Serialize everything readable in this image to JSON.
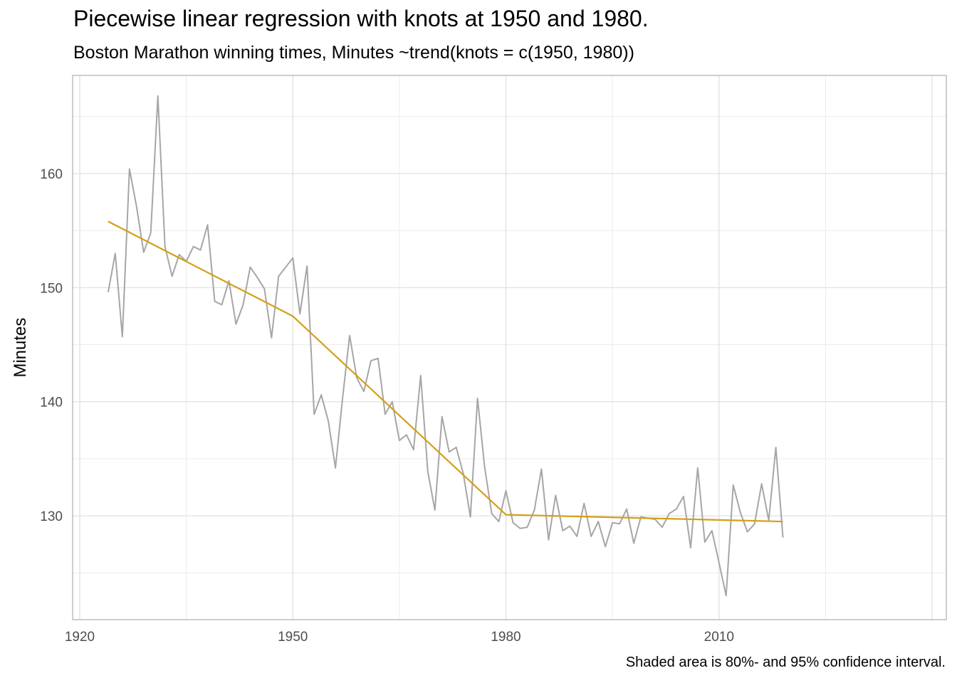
{
  "chart_data": {
    "type": "line",
    "title": "Piecewise linear regression with knots at 1950 and 1980.",
    "subtitle": "Boston Marathon winning times, Minutes ~trend(knots = c(1950, 1980))",
    "caption": "Shaded area is 80%- and 95% confidence interval.",
    "xlabel": "",
    "ylabel": "Minutes",
    "xlim": [
      1919,
      2042
    ],
    "ylim": [
      120.9,
      168.6
    ],
    "xticks": [
      1920,
      1950,
      1980,
      2010
    ],
    "yticks": [
      130,
      140,
      150,
      160
    ],
    "grid": true,
    "legend": "none",
    "series": [
      {
        "color": "#a6a6a6",
        "x": [
          1924,
          1925,
          1926,
          1927,
          1928,
          1929,
          1930,
          1931,
          1932,
          1933,
          1934,
          1935,
          1936,
          1937,
          1938,
          1939,
          1940,
          1941,
          1942,
          1943,
          1944,
          1945,
          1946,
          1947,
          1948,
          1949,
          1950,
          1951,
          1952,
          1953,
          1954,
          1955,
          1956,
          1957,
          1958,
          1959,
          1960,
          1961,
          1962,
          1963,
          1964,
          1965,
          1966,
          1967,
          1968,
          1969,
          1970,
          1971,
          1972,
          1973,
          1974,
          1975,
          1976,
          1977,
          1978,
          1979,
          1980,
          1981,
          1982,
          1983,
          1984,
          1985,
          1986,
          1987,
          1988,
          1989,
          1990,
          1991,
          1992,
          1993,
          1994,
          1995,
          1996,
          1997,
          1998,
          1999,
          2000,
          2001,
          2002,
          2003,
          2004,
          2005,
          2006,
          2007,
          2008,
          2009,
          2010,
          2011,
          2012,
          2013,
          2014,
          2015,
          2016,
          2017,
          2018,
          2019
        ],
        "y": [
          149.6,
          153.0,
          145.7,
          160.4,
          157.1,
          153.1,
          154.8,
          166.8,
          153.6,
          151.0,
          152.9,
          152.3,
          153.6,
          153.3,
          155.5,
          148.8,
          148.5,
          150.6,
          146.8,
          148.5,
          151.8,
          150.9,
          149.9,
          145.6,
          151.0,
          151.8,
          152.6,
          147.7,
          151.9,
          138.9,
          140.6,
          138.3,
          134.2,
          140.3,
          145.8,
          142.1,
          140.9,
          143.6,
          143.8,
          138.9,
          140.0,
          136.6,
          137.1,
          135.8,
          142.3,
          133.9,
          130.5,
          138.7,
          135.6,
          136.0,
          133.7,
          129.9,
          140.3,
          134.3,
          130.2,
          129.5,
          132.2,
          129.4,
          128.9,
          129.0,
          130.5,
          134.1,
          127.9,
          131.8,
          128.7,
          129.1,
          128.2,
          131.1,
          128.2,
          129.5,
          127.3,
          129.4,
          129.3,
          130.6,
          127.6,
          129.9,
          129.8,
          129.7,
          129.0,
          130.2,
          130.6,
          131.7,
          127.2,
          134.2,
          127.7,
          128.7,
          125.9,
          123.0,
          132.7,
          130.3,
          128.6,
          129.3,
          132.8,
          129.6,
          136.0,
          128.1
        ]
      },
      {
        "color": "#d4a017",
        "x": [
          1924,
          1950,
          1980,
          2019
        ],
        "y": [
          155.8,
          147.5,
          130.1,
          129.5
        ]
      }
    ]
  }
}
